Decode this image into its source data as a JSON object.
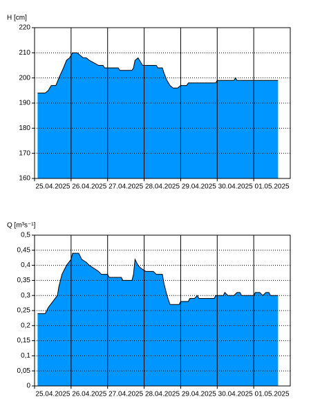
{
  "chart_data": [
    {
      "type": "area",
      "ylabel": "H [cm]",
      "color": "#0096ff",
      "grid": true,
      "x": [
        2,
        7,
        9,
        11,
        14,
        16,
        19,
        21,
        23,
        25,
        28,
        30,
        32,
        34,
        36,
        39,
        42,
        45,
        46,
        55,
        56,
        64,
        65,
        66,
        68,
        69,
        71,
        80,
        81,
        84,
        85,
        87,
        89,
        91,
        94,
        96,
        100,
        101,
        119,
        120,
        131,
        132,
        133,
        160
      ],
      "values": [
        194,
        194,
        195,
        197,
        197,
        200,
        204,
        207,
        208,
        210,
        210,
        209,
        208,
        208,
        207,
        206,
        205,
        205,
        204,
        204,
        203,
        203,
        204,
        207,
        208,
        207,
        205,
        205,
        204,
        204,
        202,
        199,
        197,
        196,
        196,
        197,
        197,
        198,
        198,
        199,
        199,
        200,
        199,
        199
      ],
      "xlim": [
        0,
        168
      ],
      "xticks": [
        {
          "value": 0,
          "label": "25.04.2025"
        },
        {
          "value": 24,
          "label": "26.04.2025"
        },
        {
          "value": 48,
          "label": "27.04.2025"
        },
        {
          "value": 72,
          "label": "28.04.2025"
        },
        {
          "value": 96,
          "label": "29.04.2025"
        },
        {
          "value": 120,
          "label": "30.04.2025"
        },
        {
          "value": 144,
          "label": "01.05.2025"
        }
      ],
      "ylim": [
        160,
        220
      ],
      "yticks": [
        160,
        170,
        180,
        190,
        200,
        210,
        220
      ]
    },
    {
      "type": "area",
      "ylabel": "Q [m³s⁻¹]",
      "color": "#0096ff",
      "grid": true,
      "x": [
        2,
        7,
        9,
        12,
        15,
        16,
        18,
        21,
        24,
        25,
        29,
        31,
        34,
        36,
        39,
        42,
        44,
        48,
        49,
        57,
        58,
        64,
        65,
        66,
        68,
        70,
        73,
        78,
        80,
        84,
        85,
        87,
        89,
        95,
        96,
        101,
        102,
        105,
        107,
        108,
        118,
        119,
        124,
        125,
        127,
        131,
        133,
        135,
        136,
        144,
        145,
        148,
        150,
        152,
        154,
        155,
        160
      ],
      "values": [
        0.24,
        0.24,
        0.26,
        0.28,
        0.3,
        0.33,
        0.37,
        0.4,
        0.42,
        0.44,
        0.44,
        0.42,
        0.41,
        0.4,
        0.39,
        0.38,
        0.37,
        0.37,
        0.36,
        0.36,
        0.35,
        0.35,
        0.37,
        0.42,
        0.4,
        0.39,
        0.38,
        0.38,
        0.37,
        0.37,
        0.34,
        0.3,
        0.27,
        0.27,
        0.28,
        0.28,
        0.29,
        0.29,
        0.3,
        0.29,
        0.29,
        0.3,
        0.3,
        0.31,
        0.3,
        0.3,
        0.31,
        0.31,
        0.3,
        0.3,
        0.31,
        0.31,
        0.3,
        0.31,
        0.31,
        0.3,
        0.3
      ],
      "xlim": [
        0,
        168
      ],
      "xticks": [
        {
          "value": 0,
          "label": "25.04.2025"
        },
        {
          "value": 24,
          "label": "26.04.2025"
        },
        {
          "value": 48,
          "label": "27.04.2025"
        },
        {
          "value": 72,
          "label": "28.04.2025"
        },
        {
          "value": 96,
          "label": "29.04.2025"
        },
        {
          "value": 120,
          "label": "30.04.2025"
        },
        {
          "value": 144,
          "label": "01.05.2025"
        }
      ],
      "ylim": [
        0,
        0.5
      ],
      "yticks": [
        0,
        {
          "value": 0.05,
          "label": "0,05"
        },
        {
          "value": 0.1,
          "label": "0,1"
        },
        {
          "value": 0.15,
          "label": "0,15"
        },
        {
          "value": 0.2,
          "label": "0,2"
        },
        {
          "value": 0.25,
          "label": "0,25"
        },
        {
          "value": 0.3,
          "label": "0,3"
        },
        {
          "value": 0.35,
          "label": "0,35"
        },
        {
          "value": 0.4,
          "label": "0,4"
        },
        {
          "value": 0.45,
          "label": "0,45"
        },
        {
          "value": 0.5,
          "label": "0,5"
        }
      ]
    }
  ]
}
